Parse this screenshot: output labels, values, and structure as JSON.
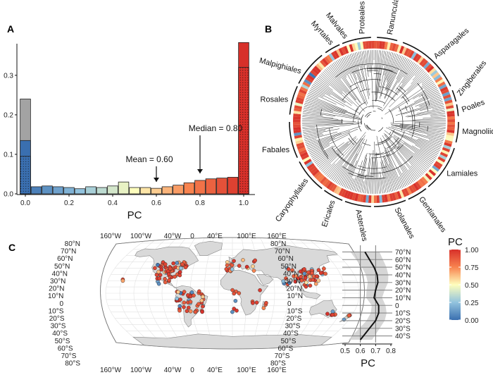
{
  "panels": {
    "a_label": "A",
    "b_label": "B",
    "c_label": "C"
  },
  "chart_data": [
    {
      "panel": "A",
      "type": "bar",
      "xlabel": "PC",
      "ylabel": "",
      "xlim": [
        0,
        1
      ],
      "ylim": [
        0,
        0.38
      ],
      "x_ticks": [
        "0.0",
        "0.2",
        "0.4",
        "0.6",
        "0.8",
        "1.0"
      ],
      "y_ticks": [
        "0.0",
        "0.1",
        "0.2",
        "0.3"
      ],
      "bins": [
        0.0,
        0.05,
        0.1,
        0.15,
        0.2,
        0.25,
        0.3,
        0.35,
        0.4,
        0.45,
        0.5,
        0.55,
        0.6,
        0.65,
        0.7,
        0.75,
        0.8,
        0.85,
        0.9,
        0.95,
        1.0
      ],
      "values": [
        0.24,
        0.018,
        0.02,
        0.018,
        0.016,
        0.013,
        0.018,
        0.016,
        0.02,
        0.03,
        0.016,
        0.016,
        0.014,
        0.018,
        0.022,
        0.028,
        0.034,
        0.038,
        0.04,
        0.042,
        0.383
      ],
      "stacked_segments": {
        "bin_0.0": {
          "dotted": 0.095,
          "solid": 0.135,
          "grey_total": 0.24
        },
        "bin_1.0": {
          "dotted": 0.32,
          "total": 0.383
        }
      },
      "annotations": [
        {
          "text": "Mean = 0.60",
          "x": 0.6
        },
        {
          "text": "Median = 0.80",
          "x": 0.8
        }
      ]
    },
    {
      "panel": "B",
      "type": "circular-phylogeny",
      "orders": [
        "Proteales",
        "Ranunculales",
        "Asparagales",
        "Zingiberales",
        "Poales",
        "Magnoliids",
        "Lamiales",
        "Gentianales",
        "Solanales",
        "Asterales",
        "Ericales",
        "Caryophyllales",
        "Fabales",
        "Rosales",
        "Malpighiales",
        "Myrtales",
        "Malvales"
      ]
    },
    {
      "panel": "C",
      "type": "map",
      "lon_labels": [
        "160°W",
        "100°W",
        "40°W",
        "0",
        "40°E",
        "100°E",
        "160°E"
      ],
      "lat_labels_left": [
        "80°N",
        "70°N",
        "60°N",
        "50°N",
        "40°N",
        "30°N",
        "20°N",
        "10°N",
        "0",
        "10°S",
        "20°S",
        "30°S",
        "40°S",
        "50°S",
        "60°S",
        "70°S",
        "80°S"
      ],
      "lat_labels_right": [
        "80°N",
        "70°N",
        "60°N",
        "50°N",
        "40°N",
        "30°N",
        "20°N",
        "10°N",
        "0",
        "10°S",
        "20°S",
        "30°S",
        "40°S",
        "50°S",
        "60°S",
        "70°S",
        "80°S"
      ]
    },
    {
      "panel": "C-profile",
      "type": "line",
      "xlabel": "PC",
      "x_ticks": [
        "0.5",
        "0.6",
        "0.7",
        "0.8"
      ],
      "xlim": [
        0.5,
        0.8
      ],
      "lat_labels": [
        "70°N",
        "60°N",
        "50°N",
        "40°N",
        "30°N",
        "20°N",
        "10°N",
        "0",
        "10°S",
        "20°S",
        "30°S",
        "40°S"
      ],
      "vlines": [
        0.6,
        0.7
      ],
      "series": [
        {
          "lat": [
            70,
            60,
            50,
            40,
            30,
            20,
            10,
            0,
            -10,
            -20,
            -30,
            -40,
            -45
          ],
          "pc": [
            0.63,
            0.66,
            0.69,
            0.71,
            0.715,
            0.7,
            0.69,
            0.72,
            0.72,
            0.7,
            0.66,
            0.62,
            0.6
          ]
        }
      ]
    },
    {
      "panel": "C-legend",
      "type": "colorbar",
      "title": "PC",
      "tick_labels": [
        "1.00",
        "0.75",
        "0.50",
        "0.25",
        "0.00"
      ],
      "colors": {
        "high": "#d7302a",
        "mid": "#fefebd",
        "low": "#3a6fb0"
      }
    }
  ]
}
